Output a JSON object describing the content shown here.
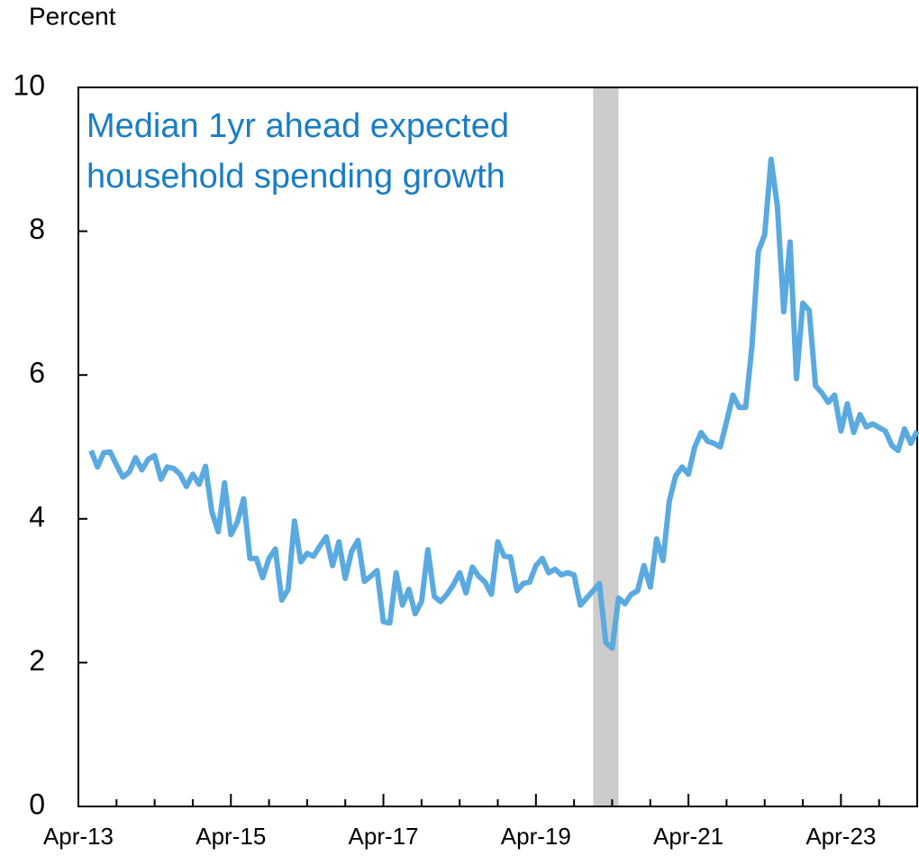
{
  "chart_data": {
    "type": "line",
    "y_axis_label": "Percent",
    "annotation": [
      "Median 1yr ahead expected",
      "household spending growth"
    ],
    "annotation_color": "#1a7dc4",
    "x": [
      "2013-06",
      "2013-07",
      "2013-08",
      "2013-09",
      "2013-10",
      "2013-11",
      "2013-12",
      "2014-01",
      "2014-02",
      "2014-03",
      "2014-04",
      "2014-05",
      "2014-06",
      "2014-07",
      "2014-08",
      "2014-09",
      "2014-10",
      "2014-11",
      "2014-12",
      "2015-01",
      "2015-02",
      "2015-03",
      "2015-04",
      "2015-05",
      "2015-06",
      "2015-07",
      "2015-08",
      "2015-09",
      "2015-10",
      "2015-11",
      "2015-12",
      "2016-01",
      "2016-02",
      "2016-03",
      "2016-04",
      "2016-05",
      "2016-06",
      "2016-07",
      "2016-08",
      "2016-09",
      "2016-10",
      "2016-11",
      "2016-12",
      "2017-01",
      "2017-02",
      "2017-03",
      "2017-04",
      "2017-05",
      "2017-06",
      "2017-07",
      "2017-08",
      "2017-09",
      "2017-10",
      "2017-11",
      "2017-12",
      "2018-01",
      "2018-02",
      "2018-03",
      "2018-04",
      "2018-05",
      "2018-06",
      "2018-07",
      "2018-08",
      "2018-09",
      "2018-10",
      "2018-11",
      "2018-12",
      "2019-01",
      "2019-02",
      "2019-03",
      "2019-04",
      "2019-05",
      "2019-06",
      "2019-07",
      "2019-08",
      "2019-09",
      "2019-10",
      "2019-11",
      "2019-12",
      "2020-01",
      "2020-02",
      "2020-03",
      "2020-04",
      "2020-05",
      "2020-06",
      "2020-07",
      "2020-08",
      "2020-09",
      "2020-10",
      "2020-11",
      "2020-12",
      "2021-01",
      "2021-02",
      "2021-03",
      "2021-04",
      "2021-05",
      "2021-06",
      "2021-07",
      "2021-08",
      "2021-09",
      "2021-10",
      "2021-11",
      "2021-12",
      "2022-01",
      "2022-02",
      "2022-03",
      "2022-04",
      "2022-05",
      "2022-06",
      "2022-07",
      "2022-08",
      "2022-09",
      "2022-10",
      "2022-11",
      "2022-12",
      "2023-01",
      "2023-02",
      "2023-03",
      "2023-04",
      "2023-05",
      "2023-06",
      "2023-07",
      "2023-08",
      "2023-09",
      "2023-10",
      "2023-11",
      "2023-12",
      "2024-01",
      "2024-02",
      "2024-03",
      "2024-04"
    ],
    "series": [
      {
        "name": "Median 1yr ahead expected household spending growth",
        "color": "#5aaae0",
        "values": [
          4.95,
          4.72,
          4.92,
          4.93,
          4.75,
          4.58,
          4.65,
          4.85,
          4.68,
          4.83,
          4.88,
          4.55,
          4.72,
          4.7,
          4.62,
          4.45,
          4.62,
          4.48,
          4.73,
          4.1,
          3.82,
          4.5,
          3.78,
          3.95,
          4.28,
          3.45,
          3.45,
          3.18,
          3.45,
          3.58,
          2.87,
          3.02,
          3.97,
          3.4,
          3.52,
          3.48,
          3.62,
          3.75,
          3.35,
          3.68,
          3.17,
          3.55,
          3.7,
          3.13,
          3.2,
          3.28,
          2.57,
          2.55,
          3.25,
          2.8,
          3.02,
          2.68,
          2.85,
          3.57,
          2.92,
          2.85,
          2.95,
          3.08,
          3.25,
          2.97,
          3.33,
          3.2,
          3.12,
          2.95,
          3.68,
          3.48,
          3.47,
          3.0,
          3.1,
          3.12,
          3.35,
          3.45,
          3.25,
          3.3,
          3.22,
          3.25,
          3.22,
          2.8,
          2.9,
          3.0,
          3.1,
          2.28,
          2.2,
          2.9,
          2.82,
          2.95,
          3.0,
          3.35,
          3.05,
          3.72,
          3.42,
          4.25,
          4.6,
          4.72,
          4.62,
          5.0,
          5.2,
          5.08,
          5.05,
          5.0,
          5.35,
          5.72,
          5.55,
          5.55,
          6.4,
          7.72,
          7.95,
          9.0,
          8.35,
          6.88,
          7.85,
          5.95,
          7.0,
          6.9,
          5.85,
          5.75,
          5.62,
          5.72,
          5.22,
          5.6,
          5.2,
          5.45,
          5.28,
          5.32,
          5.27,
          5.22,
          5.02,
          4.95,
          5.25,
          5.05,
          5.22
        ]
      }
    ],
    "shading": {
      "color": "#cccccc",
      "x": [
        "2020-01",
        "2020-05"
      ]
    },
    "xlim": [
      "2013-04",
      "2024-04"
    ],
    "xticks": [
      {
        "value": "2013-04",
        "label": "Apr-13"
      },
      {
        "value": "2015-04",
        "label": "Apr-15"
      },
      {
        "value": "2017-04",
        "label": "Apr-17"
      },
      {
        "value": "2019-04",
        "label": "Apr-19"
      },
      {
        "value": "2021-04",
        "label": "Apr-21"
      },
      {
        "value": "2023-04",
        "label": "Apr-23"
      }
    ],
    "xminorticks": [
      "2013-10",
      "2014-04",
      "2014-10",
      "2015-10",
      "2016-04",
      "2016-10",
      "2017-10",
      "2018-04",
      "2018-10",
      "2019-10",
      "2020-04",
      "2020-10",
      "2021-10",
      "2022-04",
      "2022-10",
      "2023-10",
      "2024-04"
    ],
    "ylim": [
      0,
      10
    ],
    "yticks": [
      0,
      2,
      4,
      6,
      8,
      10
    ],
    "grid": false
  }
}
